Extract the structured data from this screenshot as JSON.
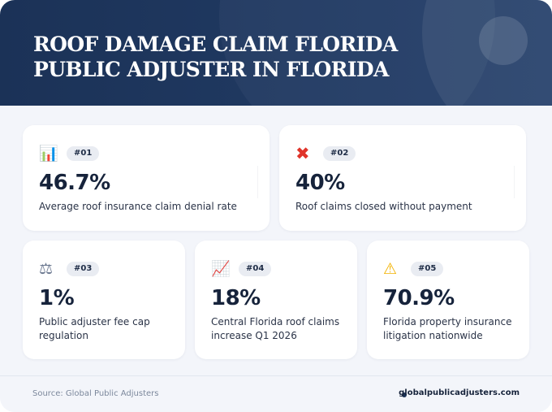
{
  "header": {
    "title_line1": "Roof Damage Claim Florida",
    "title_line2": "Public Adjuster in Florida"
  },
  "stats": [
    {
      "badge": "#01",
      "value": "46.7%",
      "label": "Average roof insurance claim denial rate",
      "icon": "bar-chart-icon",
      "glyph": "📊"
    },
    {
      "badge": "#02",
      "value": "40%",
      "label": "Roof claims closed without payment",
      "icon": "cross-mark-icon",
      "glyph": "✖"
    },
    {
      "badge": "#03",
      "value": "1%",
      "label": "Public adjuster fee cap regulation",
      "icon": "balance-scale-icon",
      "glyph": "⚖"
    },
    {
      "badge": "#04",
      "value": "18%",
      "label": "Central Florida roof claims increase Q1 2026",
      "icon": "trending-up-icon",
      "glyph": "📈"
    },
    {
      "badge": "#05",
      "value": "70.9%",
      "label": "Florida property insurance litigation nationwide",
      "icon": "warning-icon",
      "glyph": "⚠"
    }
  ],
  "footer": {
    "source": "Source: Global Public Adjusters",
    "site": "globalpublicadjusters.com"
  },
  "colors": {
    "header_bg": "#1b3257",
    "accent_red": "#e0342a",
    "text_dark": "#16233b"
  }
}
